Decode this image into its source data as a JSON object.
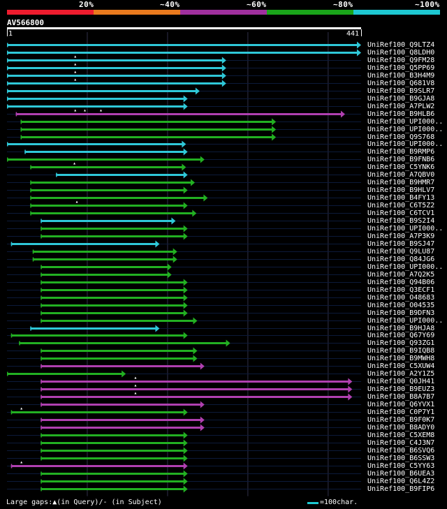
{
  "identity_legend": {
    "labels": [
      "20%",
      "~40%",
      "~60%",
      "~80%",
      "~100%"
    ],
    "colors": [
      "#ee1c2e",
      "#e97a1e",
      "#a0309e",
      "#1aa51a",
      "#1ec8d2"
    ]
  },
  "query": {
    "name": "AV566800",
    "start": "1",
    "end": "441",
    "length": 441
  },
  "colors": {
    "cyan": "#2fc8d8",
    "green": "#22b022",
    "magenta": "#b040b0",
    "grid": "#30304a",
    "row_line": "#0c1a3a"
  },
  "hits": [
    {
      "name": "UniRef100_Q9LTZ4",
      "color": "cyan",
      "start": 0,
      "end": 441,
      "gaps": []
    },
    {
      "name": "UniRef100_Q8LDH0",
      "color": "cyan",
      "start": 0,
      "end": 441,
      "gaps": []
    },
    {
      "name": "UniRef100_Q9FM28",
      "color": "cyan",
      "start": 0,
      "end": 273,
      "gaps": [
        85
      ]
    },
    {
      "name": "UniRef100_Q5PP69",
      "color": "cyan",
      "start": 0,
      "end": 273,
      "gaps": [
        85
      ]
    },
    {
      "name": "UniRef100_B3H4M9",
      "color": "cyan",
      "start": 0,
      "end": 273,
      "gaps": [
        85
      ]
    },
    {
      "name": "UniRef100_Q681V8",
      "color": "cyan",
      "start": 0,
      "end": 273,
      "gaps": [
        85
      ]
    },
    {
      "name": "UniRef100_B9SLR7",
      "color": "cyan",
      "start": 0,
      "end": 240,
      "gaps": []
    },
    {
      "name": "UniRef100_B9GJA8",
      "color": "cyan",
      "start": 0,
      "end": 225,
      "gaps": []
    },
    {
      "name": "UniRef100_A7PLW2",
      "color": "cyan",
      "start": 0,
      "end": 225,
      "gaps": []
    },
    {
      "name": "UniRef100_B9HLB6",
      "color": "magenta",
      "start": 11,
      "end": 421,
      "gaps": [
        85,
        97,
        117
      ]
    },
    {
      "name": "UniRef100_UPI000..",
      "color": "green",
      "start": 17,
      "end": 335,
      "gaps": []
    },
    {
      "name": "UniRef100_UPI000..",
      "color": "green",
      "start": 17,
      "end": 335,
      "gaps": []
    },
    {
      "name": "UniRef100_Q9S768",
      "color": "green",
      "start": 17,
      "end": 335,
      "gaps": []
    },
    {
      "name": "UniRef100_UPI000..",
      "color": "cyan",
      "start": 0,
      "end": 223,
      "gaps": []
    },
    {
      "name": "UniRef100_B9RMP6",
      "color": "cyan",
      "start": 22,
      "end": 225,
      "gaps": []
    },
    {
      "name": "UniRef100_B9FNB6",
      "color": "green",
      "start": 0,
      "end": 246,
      "gaps": []
    },
    {
      "name": "UniRef100_C5YNK6",
      "color": "green",
      "start": 29,
      "end": 223,
      "gaps": [
        84
      ]
    },
    {
      "name": "UniRef100_A7QBV0",
      "color": "cyan",
      "start": 61,
      "end": 225,
      "gaps": []
    },
    {
      "name": "UniRef100_B9HMR7",
      "color": "green",
      "start": 29,
      "end": 234,
      "gaps": []
    },
    {
      "name": "UniRef100_B9HLV7",
      "color": "green",
      "start": 29,
      "end": 225,
      "gaps": []
    },
    {
      "name": "UniRef100_B4FY13",
      "color": "green",
      "start": 29,
      "end": 250,
      "gaps": []
    },
    {
      "name": "UniRef100_C6T5Z2",
      "color": "green",
      "start": 29,
      "end": 225,
      "gaps": [
        87
      ]
    },
    {
      "name": "UniRef100_C6TCV1",
      "color": "green",
      "start": 29,
      "end": 236,
      "gaps": []
    },
    {
      "name": "UniRef100_B9S2I4",
      "color": "cyan",
      "start": 42,
      "end": 210,
      "gaps": []
    },
    {
      "name": "UniRef100_UPI000..",
      "color": "green",
      "start": 42,
      "end": 225,
      "gaps": []
    },
    {
      "name": "UniRef100_A7P3K9",
      "color": "green",
      "start": 42,
      "end": 225,
      "gaps": []
    },
    {
      "name": "UniRef100_B9SJ47",
      "color": "cyan",
      "start": 5,
      "end": 190,
      "gaps": []
    },
    {
      "name": "UniRef100_Q9LU87",
      "color": "green",
      "start": 32,
      "end": 212,
      "gaps": []
    },
    {
      "name": "UniRef100_Q84JG6",
      "color": "green",
      "start": 32,
      "end": 212,
      "gaps": []
    },
    {
      "name": "UniRef100_UPI000..",
      "color": "green",
      "start": 42,
      "end": 205,
      "gaps": []
    },
    {
      "name": "UniRef100_A7Q2K5",
      "color": "green",
      "start": 42,
      "end": 205,
      "gaps": []
    },
    {
      "name": "UniRef100_Q94B06",
      "color": "green",
      "start": 42,
      "end": 225,
      "gaps": []
    },
    {
      "name": "UniRef100_Q3ECF1",
      "color": "green",
      "start": 42,
      "end": 225,
      "gaps": []
    },
    {
      "name": "UniRef100_O48683",
      "color": "green",
      "start": 42,
      "end": 225,
      "gaps": []
    },
    {
      "name": "UniRef100_O04535",
      "color": "green",
      "start": 42,
      "end": 225,
      "gaps": []
    },
    {
      "name": "UniRef100_B9DFN3",
      "color": "green",
      "start": 42,
      "end": 225,
      "gaps": []
    },
    {
      "name": "UniRef100_UPI000..",
      "color": "green",
      "start": 42,
      "end": 237,
      "gaps": []
    },
    {
      "name": "UniRef100_B9HJA8",
      "color": "cyan",
      "start": 29,
      "end": 190,
      "gaps": []
    },
    {
      "name": "UniRef100_Q67Y69",
      "color": "green",
      "start": 5,
      "end": 225,
      "gaps": []
    },
    {
      "name": "UniRef100_Q93ZG1",
      "color": "green",
      "start": 15,
      "end": 278,
      "gaps": []
    },
    {
      "name": "UniRef100_B9IQB8",
      "color": "green",
      "start": 42,
      "end": 237,
      "gaps": []
    },
    {
      "name": "UniRef100_B9MWH8",
      "color": "green",
      "start": 42,
      "end": 237,
      "gaps": []
    },
    {
      "name": "UniRef100_C5XUW4",
      "color": "magenta",
      "start": 42,
      "end": 246,
      "gaps": []
    },
    {
      "name": "UniRef100_A2Y1Z5",
      "color": "green",
      "start": 0,
      "end": 148,
      "gaps": []
    },
    {
      "name": "UniRef100_Q0JH41",
      "color": "magenta",
      "start": 42,
      "end": 430,
      "gaps": [
        160
      ]
    },
    {
      "name": "UniRef100_B9EUZ3",
      "color": "magenta",
      "start": 42,
      "end": 430,
      "gaps": [
        160
      ]
    },
    {
      "name": "UniRef100_B8A7B7",
      "color": "magenta",
      "start": 42,
      "end": 430,
      "gaps": [
        160
      ]
    },
    {
      "name": "UniRef100_Q6YVX1",
      "color": "magenta",
      "start": 42,
      "end": 246,
      "gaps": []
    },
    {
      "name": "UniRef100_C0P7Y1",
      "color": "green",
      "start": 5,
      "end": 225,
      "gaps": [
        18
      ]
    },
    {
      "name": "UniRef100_B9F0K7",
      "color": "magenta",
      "start": 42,
      "end": 246,
      "gaps": []
    },
    {
      "name": "UniRef100_B8ADY0",
      "color": "magenta",
      "start": 42,
      "end": 246,
      "gaps": []
    },
    {
      "name": "UniRef100_C5XEM8",
      "color": "green",
      "start": 42,
      "end": 225,
      "gaps": []
    },
    {
      "name": "UniRef100_C4J3N7",
      "color": "green",
      "start": 42,
      "end": 225,
      "gaps": []
    },
    {
      "name": "UniRef100_B6SVQ6",
      "color": "green",
      "start": 42,
      "end": 225,
      "gaps": []
    },
    {
      "name": "UniRef100_B6SSW3",
      "color": "green",
      "start": 42,
      "end": 225,
      "gaps": []
    },
    {
      "name": "UniRef100_C5YY63",
      "color": "magenta",
      "start": 5,
      "end": 225,
      "gaps": [
        18
      ]
    },
    {
      "name": "UniRef100_B6UEA3",
      "color": "green",
      "start": 42,
      "end": 225,
      "gaps": []
    },
    {
      "name": "UniRef100_Q6L4Z2",
      "color": "green",
      "start": 42,
      "end": 225,
      "gaps": []
    },
    {
      "name": "UniRef100_B9FIP6",
      "color": "green",
      "start": 42,
      "end": 225,
      "gaps": []
    }
  ],
  "footer": {
    "legend": "Large gaps:▲(in Query)/- (in Subject)",
    "scale": "=100char."
  }
}
